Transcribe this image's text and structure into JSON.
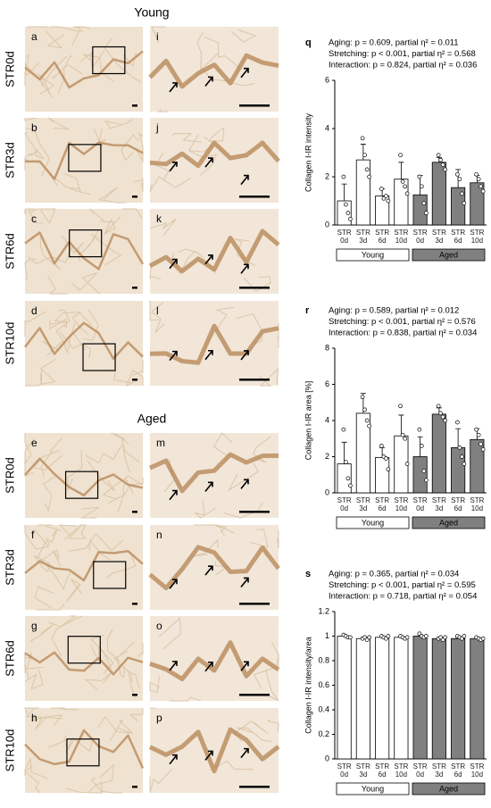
{
  "figure": {
    "headings": [
      "Young",
      "Aged"
    ],
    "rows": [
      {
        "label": "STR0d",
        "left": "a",
        "right": "i"
      },
      {
        "label": "STR3d",
        "left": "b",
        "right": "j"
      },
      {
        "label": "STR6d",
        "left": "c",
        "right": "k"
      },
      {
        "label": "STR10d",
        "left": "d",
        "right": "l"
      },
      {
        "label": "STR0d",
        "left": "e",
        "right": "m"
      },
      {
        "label": "STR3d",
        "left": "f",
        "right": "n"
      },
      {
        "label": "STR6d",
        "left": "g",
        "right": "o"
      },
      {
        "label": "STR10d",
        "left": "h",
        "right": "p"
      }
    ]
  },
  "chart_data": [
    {
      "type": "bar",
      "panel": "q",
      "stats": [
        "Aging: p = 0.609, partial η² = 0.011",
        "Stretching: p < 0.001, partial η² = 0.568",
        "Interaction: p = 0.824, partial η² = 0.036"
      ],
      "ylabel": "Collagen I-IR intensity",
      "categories": [
        "STR\n0d",
        "STR\n3d",
        "STR\n6d",
        "STR\n10d",
        "STR\n0d",
        "STR\n3d",
        "STR\n6d",
        "STR\n10d"
      ],
      "ylim": [
        0,
        6
      ],
      "yticks": [
        0,
        2,
        4,
        6
      ],
      "series": [
        {
          "name": "Young",
          "color": "#ffffff",
          "values": [
            1.0,
            2.7,
            1.2,
            1.9,
            null,
            null,
            null,
            null
          ],
          "errors": [
            0.7,
            0.65,
            0.3,
            0.7,
            null,
            null,
            null,
            null
          ],
          "points": [
            [
              2.0,
              0.85,
              0.5,
              0.25
            ],
            [
              3.6,
              2.9,
              2.3,
              2.0
            ],
            [
              1.5,
              1.1,
              1.2,
              1.0
            ],
            [
              2.9,
              1.8,
              1.6,
              1.3
            ],
            null,
            null,
            null,
            null
          ]
        },
        {
          "name": "Aged",
          "color": "#808080",
          "values": [
            null,
            null,
            null,
            null,
            1.25,
            2.6,
            1.55,
            1.75
          ],
          "errors": [
            null,
            null,
            null,
            null,
            0.8,
            0.2,
            0.75,
            0.3
          ],
          "points": [
            null,
            null,
            null,
            null,
            [
              2.0,
              1.6,
              0.9,
              0.5
            ],
            [
              2.9,
              2.7,
              2.5,
              2.3
            ],
            [
              2.1,
              1.9,
              1.3,
              0.9
            ],
            [
              2.1,
              1.9,
              1.6,
              1.4
            ]
          ]
        }
      ]
    },
    {
      "type": "bar",
      "panel": "r",
      "stats": [
        "Aging: p = 0.589, partial η² = 0.012",
        "Stretching: p < 0.001, partial η² = 0.576",
        "Interaction: p = 0.838, partial η² = 0.034"
      ],
      "ylabel": "Collagen I-IR area [%]",
      "categories": [
        "STR\n0d",
        "STR\n3d",
        "STR\n6d",
        "STR\n10d",
        "STR\n0d",
        "STR\n3d",
        "STR\n6d",
        "STR\n10d"
      ],
      "ylim": [
        0,
        8
      ],
      "yticks": [
        0,
        2,
        4,
        6,
        8
      ],
      "series": [
        {
          "name": "Young",
          "color": "#ffffff",
          "values": [
            1.6,
            4.4,
            1.95,
            3.15,
            null,
            null,
            null,
            null
          ],
          "errors": [
            1.2,
            1.1,
            0.55,
            1.15,
            null,
            null,
            null,
            null
          ],
          "points": [
            [
              3.5,
              1.7,
              0.8,
              0.4
            ],
            [
              5.3,
              4.6,
              4.0,
              3.7
            ],
            [
              2.6,
              2.0,
              1.9,
              1.3
            ],
            [
              4.8,
              3.2,
              3.0,
              1.6
            ],
            null,
            null,
            null,
            null
          ]
        },
        {
          "name": "Aged",
          "color": "#808080",
          "values": [
            null,
            null,
            null,
            null,
            2.0,
            4.35,
            2.5,
            2.95
          ],
          "errors": [
            null,
            null,
            null,
            null,
            1.1,
            0.35,
            1.05,
            0.6
          ],
          "points": [
            null,
            null,
            null,
            null,
            [
              3.5,
              2.6,
              1.2,
              0.7
            ],
            [
              4.8,
              4.4,
              4.2,
              4.0
            ],
            [
              3.9,
              2.5,
              2.0,
              1.6
            ],
            [
              3.5,
              3.2,
              2.7,
              2.4
            ]
          ]
        }
      ]
    },
    {
      "type": "bar",
      "panel": "s",
      "stats": [
        "Aging: p = 0.365, partial η² = 0.034",
        "Stretching: p < 0.001, partial η² = 0.595",
        "Interaction: p = 0.718, partial η² = 0.054"
      ],
      "ylabel": "Collagen I-IR intensity/area",
      "categories": [
        "STR\n0d",
        "STR\n3d",
        "STR\n6d",
        "STR\n10d",
        "STR\n0d",
        "STR\n3d",
        "STR\n6d",
        "STR\n10d"
      ],
      "ylim": [
        0,
        1.2
      ],
      "yticks": [
        0,
        0.2,
        0.4,
        0.6,
        0.8,
        1,
        1.2
      ],
      "series": [
        {
          "name": "Young",
          "color": "#ffffff",
          "values": [
            1.0,
            0.98,
            0.99,
            0.99,
            null,
            null,
            null,
            null
          ],
          "errors": [
            0.01,
            0.01,
            0.01,
            0.01,
            null,
            null,
            null,
            null
          ],
          "points": [
            [
              1.01,
              1.0,
              0.99,
              0.99
            ],
            [
              0.98,
              0.99,
              0.97,
              0.99
            ],
            [
              1.0,
              0.99,
              0.98,
              1.0
            ],
            [
              1.0,
              0.99,
              0.98,
              0.99
            ],
            null,
            null,
            null,
            null
          ]
        },
        {
          "name": "Aged",
          "color": "#808080",
          "values": [
            null,
            null,
            null,
            null,
            1.0,
            0.98,
            0.98,
            0.98
          ],
          "errors": [
            null,
            null,
            null,
            null,
            0.01,
            0.01,
            0.01,
            0.01
          ],
          "points": [
            null,
            null,
            null,
            null,
            [
              1.02,
              1.0,
              0.99,
              1.0
            ],
            [
              0.98,
              0.99,
              0.97,
              0.99
            ],
            [
              1.0,
              0.99,
              0.98,
              1.0
            ],
            [
              0.99,
              0.98,
              0.97,
              0.98
            ]
          ]
        }
      ]
    }
  ]
}
